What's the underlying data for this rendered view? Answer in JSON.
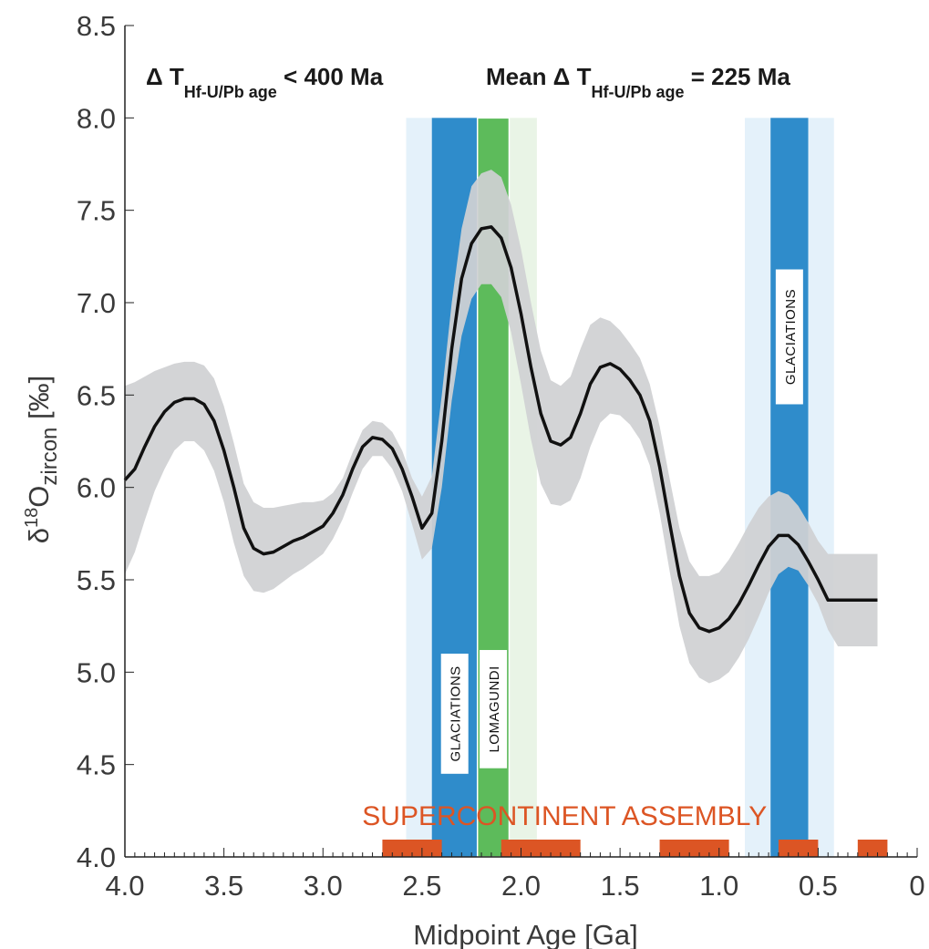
{
  "chart_data": {
    "type": "line",
    "xlabel": "Midpoint Age [Ga]",
    "ylabel": {
      "delta": "δ",
      "superscript": "18",
      "main": "O",
      "subscript": "zircon",
      "unit": " [‰]"
    },
    "xlim": [
      4.0,
      0.0
    ],
    "ylim": [
      4.0,
      8.5
    ],
    "x_reversed": true,
    "grid": false,
    "x_ticks": [
      4.0,
      3.5,
      3.0,
      2.5,
      2.0,
      1.5,
      1.0,
      0.5,
      0
    ],
    "x_tick_labels": [
      "4.0",
      "3.5",
      "3.0",
      "2.5",
      "2.0",
      "1.5",
      "1.0",
      "0.5",
      "0"
    ],
    "y_ticks": [
      4.0,
      4.5,
      5.0,
      5.5,
      6.0,
      6.5,
      7.0,
      7.5,
      8.0,
      8.5
    ],
    "y_tick_labels": [
      "4.0",
      "4.5",
      "5.0",
      "5.5",
      "6.0",
      "6.5",
      "7.0",
      "7.5",
      "8.0",
      "8.5"
    ],
    "annotations": [
      {
        "main": "Δ T",
        "sub": "Hf-U/Pb age",
        "tail": " < 400 Ma"
      },
      {
        "main": "Mean Δ T",
        "sub": "Hf-U/Pb age",
        "tail": " = 225 Ma"
      }
    ],
    "colors": {
      "line": "#111111",
      "envelope": "#d0d1d3",
      "glaciation_core": "#2f8ccb",
      "glaciation_halo": "#e4f1fa",
      "lomagundi_core": "#5dbb5b",
      "lomagundi_halo": "#e9f4e6",
      "supercontinent": "#dc5524"
    },
    "bands": [
      {
        "label": "GLACIATIONS",
        "kind": "glaciation",
        "halo": [
          2.58,
          2.2
        ],
        "core": [
          2.45,
          2.22
        ],
        "label_y": [
          4.45,
          5.1
        ]
      },
      {
        "label": "LOMAGUNDI",
        "kind": "lomagundi",
        "halo": [
          2.2,
          1.92
        ],
        "core": [
          2.22,
          2.06
        ],
        "label_y": [
          4.48,
          5.12
        ]
      },
      {
        "label": "GLACIATIONS",
        "kind": "glaciation",
        "halo": [
          0.87,
          0.42
        ],
        "core": [
          0.74,
          0.55
        ],
        "label_y": [
          6.45,
          7.18
        ]
      }
    ],
    "supercontinent": {
      "label": "SUPERCONTINENT ASSEMBLY",
      "intervals": [
        [
          2.7,
          2.4
        ],
        [
          2.1,
          1.7
        ],
        [
          1.3,
          0.95
        ],
        [
          0.7,
          0.5
        ],
        [
          0.3,
          0.15
        ]
      ]
    },
    "series": [
      {
        "x": [
          4.0,
          3.95,
          3.9,
          3.85,
          3.8,
          3.75,
          3.7,
          3.65,
          3.6,
          3.55,
          3.5,
          3.45,
          3.4,
          3.35,
          3.3,
          3.25,
          3.2,
          3.15,
          3.1,
          3.05,
          3.0,
          2.95,
          2.9,
          2.85,
          2.8,
          2.75,
          2.7,
          2.65,
          2.6,
          2.55,
          2.5,
          2.45,
          2.4,
          2.35,
          2.3,
          2.25,
          2.2,
          2.15,
          2.1,
          2.05,
          2.0,
          1.95,
          1.9,
          1.85,
          1.8,
          1.75,
          1.7,
          1.65,
          1.6,
          1.55,
          1.5,
          1.45,
          1.4,
          1.35,
          1.3,
          1.25,
          1.2,
          1.15,
          1.1,
          1.05,
          1.0,
          0.95,
          0.9,
          0.85,
          0.8,
          0.75,
          0.7,
          0.65,
          0.6,
          0.55,
          0.5,
          0.45,
          0.4,
          0.35,
          0.3,
          0.25,
          0.2
        ],
        "y": [
          6.04,
          6.1,
          6.22,
          6.33,
          6.41,
          6.46,
          6.48,
          6.48,
          6.45,
          6.36,
          6.2,
          6.0,
          5.78,
          5.67,
          5.64,
          5.65,
          5.68,
          5.71,
          5.73,
          5.76,
          5.79,
          5.86,
          5.96,
          6.1,
          6.22,
          6.27,
          6.26,
          6.21,
          6.1,
          5.95,
          5.78,
          5.86,
          6.25,
          6.75,
          7.13,
          7.32,
          7.4,
          7.41,
          7.35,
          7.19,
          6.94,
          6.65,
          6.4,
          6.25,
          6.23,
          6.27,
          6.4,
          6.56,
          6.65,
          6.67,
          6.64,
          6.58,
          6.5,
          6.36,
          6.11,
          5.81,
          5.52,
          5.32,
          5.24,
          5.22,
          5.24,
          5.29,
          5.37,
          5.47,
          5.58,
          5.68,
          5.74,
          5.74,
          5.69,
          5.6,
          5.5,
          5.39,
          5.39,
          5.39,
          5.39,
          5.39,
          5.39
        ],
        "upper": [
          6.55,
          6.57,
          6.6,
          6.63,
          6.65,
          6.67,
          6.68,
          6.68,
          6.66,
          6.59,
          6.44,
          6.24,
          6.02,
          5.92,
          5.89,
          5.89,
          5.9,
          5.91,
          5.92,
          5.92,
          5.93,
          5.97,
          6.05,
          6.19,
          6.31,
          6.36,
          6.35,
          6.3,
          6.2,
          6.05,
          5.95,
          6.06,
          6.5,
          7.0,
          7.4,
          7.63,
          7.7,
          7.72,
          7.68,
          7.53,
          7.29,
          7.0,
          6.74,
          6.58,
          6.55,
          6.6,
          6.75,
          6.88,
          6.92,
          6.9,
          6.85,
          6.78,
          6.7,
          6.56,
          6.33,
          6.05,
          5.78,
          5.6,
          5.52,
          5.52,
          5.54,
          5.61,
          5.7,
          5.8,
          5.89,
          5.95,
          5.98,
          5.96,
          5.9,
          5.81,
          5.71,
          5.64,
          5.64,
          5.64,
          5.64,
          5.64,
          5.64
        ],
        "lower": [
          5.53,
          5.65,
          5.82,
          5.98,
          6.1,
          6.2,
          6.25,
          6.25,
          6.2,
          6.09,
          5.92,
          5.7,
          5.52,
          5.44,
          5.43,
          5.45,
          5.49,
          5.53,
          5.56,
          5.6,
          5.64,
          5.72,
          5.83,
          5.97,
          6.1,
          6.17,
          6.17,
          6.1,
          5.98,
          5.8,
          5.61,
          5.67,
          6.0,
          6.47,
          6.82,
          7.02,
          7.1,
          7.1,
          7.03,
          6.84,
          6.56,
          6.26,
          6.02,
          5.91,
          5.9,
          5.93,
          6.05,
          6.22,
          6.35,
          6.4,
          6.39,
          6.34,
          6.26,
          6.12,
          5.86,
          5.55,
          5.25,
          5.05,
          4.97,
          4.94,
          4.96,
          5.0,
          5.08,
          5.18,
          5.3,
          5.43,
          5.53,
          5.57,
          5.55,
          5.47,
          5.37,
          5.23,
          5.14,
          5.14,
          5.14,
          5.14,
          5.14
        ]
      }
    ]
  }
}
